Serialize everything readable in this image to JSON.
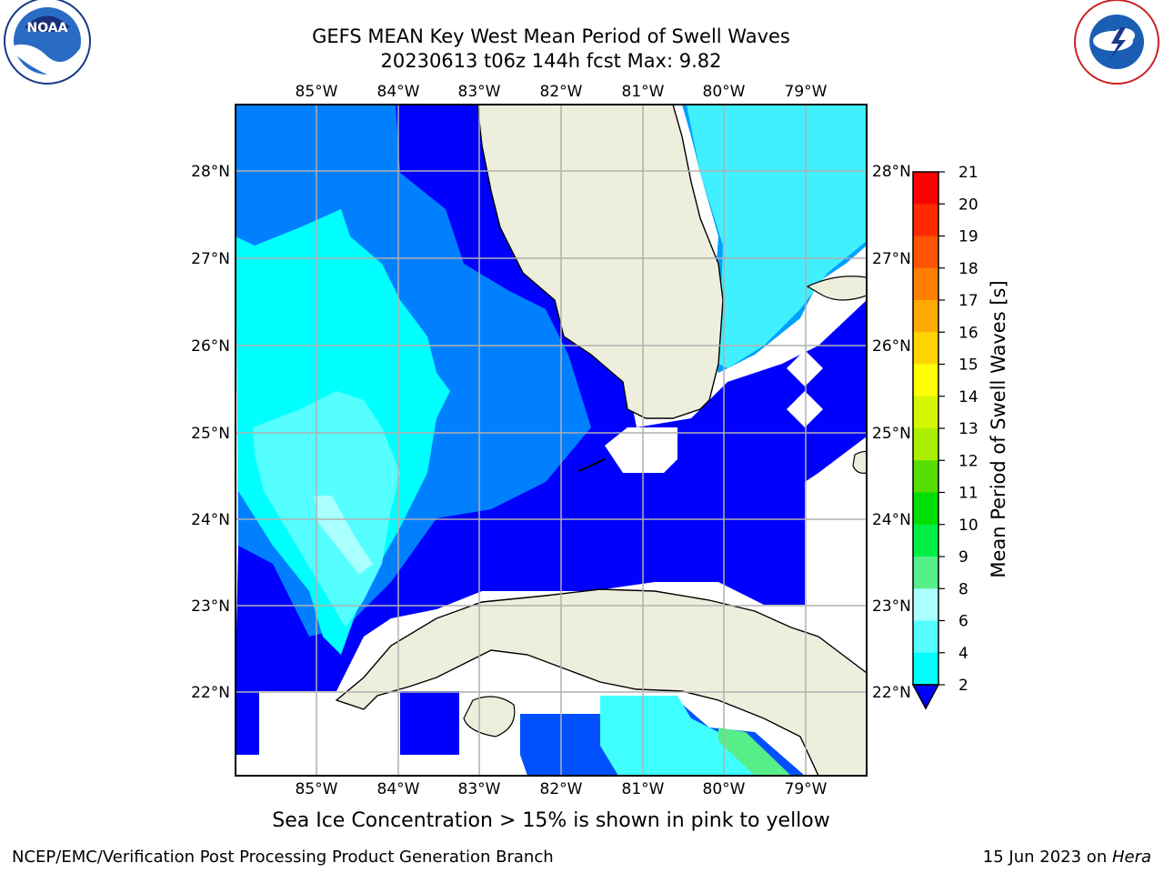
{
  "title_line1": "GEFS MEAN Key West Mean Period of Swell Waves",
  "title_line2": "20230613 t06z 144h fcst   Max: 9.82",
  "lon_labels": [
    "85°W",
    "84°W",
    "83°W",
    "82°W",
    "81°W",
    "80°W",
    "79°W"
  ],
  "lat_labels": [
    "28°N",
    "27°N",
    "26°N",
    "25°N",
    "24°N",
    "23°N",
    "22°N"
  ],
  "colorbar": {
    "label": "Mean Period of Swell Waves [s]",
    "ticks": [
      "21",
      "20",
      "19",
      "18",
      "17",
      "16",
      "15",
      "14",
      "13",
      "12",
      "11",
      "10",
      "9",
      "8",
      "6",
      "4",
      "2"
    ],
    "colors": [
      "#ff0000",
      "#ff2a00",
      "#ff5500",
      "#ff8000",
      "#ffaa00",
      "#ffd400",
      "#ffff00",
      "#d4f500",
      "#aaee00",
      "#55dd00",
      "#00dd00",
      "#00ee44",
      "#55ee88",
      "#aaffff",
      "#55ffff",
      "#00ffff",
      "#0080ff",
      "#0000ff"
    ]
  },
  "logos": {
    "left": "NOAA",
    "right": "NATIONAL WEATHER SERVICE"
  },
  "footer": {
    "sea_ice_note": "Sea Ice Concentration > 15% is shown in pink to yellow",
    "credit": "NCEP/EMC/Verification Post Processing Product Generation Branch",
    "date": "15 Jun 2023 on ",
    "machine": "Hera"
  }
}
